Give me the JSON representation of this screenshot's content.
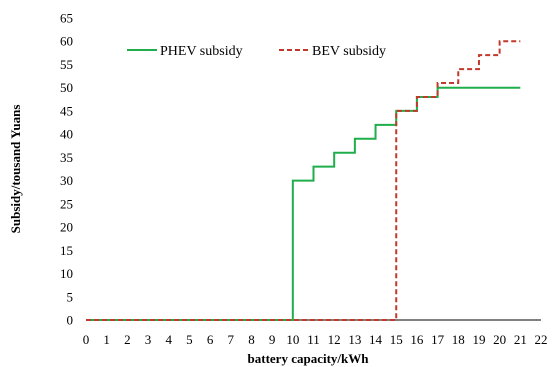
{
  "chart_data": {
    "type": "line",
    "title": "",
    "xlabel": "battery capacity/kWh",
    "ylabel": "Subsidy/tousand Yuans",
    "xlim": [
      0,
      22
    ],
    "ylim": [
      0,
      65
    ],
    "x_ticks": [
      0,
      1,
      2,
      3,
      4,
      5,
      6,
      7,
      8,
      9,
      10,
      11,
      12,
      13,
      14,
      15,
      16,
      17,
      18,
      19,
      20,
      21,
      22
    ],
    "y_ticks": [
      0,
      5,
      10,
      15,
      20,
      25,
      30,
      35,
      40,
      45,
      50,
      55,
      60,
      65
    ],
    "grid": false,
    "legend_position": "top-left",
    "series": [
      {
        "name": "PHEV subsidy",
        "color": "#1fae4b",
        "style": "solid",
        "step": true,
        "points": [
          [
            0,
            0
          ],
          [
            10,
            0
          ],
          [
            10,
            30
          ],
          [
            11,
            30
          ],
          [
            11,
            33
          ],
          [
            12,
            33
          ],
          [
            12,
            36
          ],
          [
            13,
            36
          ],
          [
            13,
            39
          ],
          [
            14,
            39
          ],
          [
            14,
            42
          ],
          [
            15,
            42
          ],
          [
            15,
            45
          ],
          [
            16,
            45
          ],
          [
            16,
            48
          ],
          [
            17,
            48
          ],
          [
            17,
            50
          ],
          [
            21,
            50
          ]
        ]
      },
      {
        "name": "BEV subsidy",
        "color": "#c0392b",
        "style": "dashed",
        "step": true,
        "points": [
          [
            0,
            0
          ],
          [
            15,
            0
          ],
          [
            15,
            45
          ],
          [
            16,
            45
          ],
          [
            16,
            48
          ],
          [
            17,
            48
          ],
          [
            17,
            51
          ],
          [
            18,
            51
          ],
          [
            18,
            54
          ],
          [
            19,
            54
          ],
          [
            19,
            57
          ],
          [
            20,
            57
          ],
          [
            20,
            60
          ],
          [
            21,
            60
          ]
        ]
      }
    ]
  }
}
